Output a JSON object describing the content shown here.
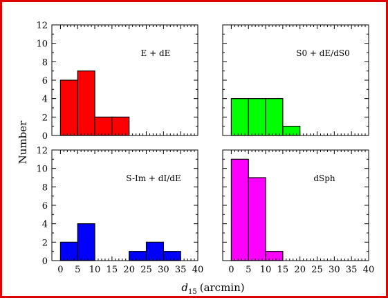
{
  "colors": {
    "frame": "#e00000"
  },
  "ylabel": "Number",
  "xlabel_main": "d",
  "xlabel_sub": "15",
  "xlabel_unit": "(arcmin)",
  "chart_data": [
    {
      "type": "bar",
      "panel": "top-left",
      "label": "E + dE",
      "color": "#ff0000",
      "bin_edges": [
        0,
        5,
        10,
        15,
        20
      ],
      "values": [
        6,
        7,
        2,
        2
      ],
      "xlim": [
        -2.5,
        40
      ],
      "ylim": [
        0,
        12
      ],
      "xticks": [
        0,
        5,
        10,
        15,
        20,
        25,
        30,
        35,
        40
      ],
      "yticks": [
        0,
        2,
        4,
        6,
        8,
        10,
        12
      ]
    },
    {
      "type": "bar",
      "panel": "top-right",
      "label": "S0 + dE/dS0",
      "color": "#00ff00",
      "bin_edges": [
        0,
        5,
        10,
        15,
        20
      ],
      "values": [
        4,
        4,
        4,
        1
      ],
      "xlim": [
        -2.5,
        40
      ],
      "ylim": [
        0,
        12
      ],
      "xticks": [
        0,
        5,
        10,
        15,
        20,
        25,
        30,
        35,
        40
      ],
      "yticks": [
        0,
        2,
        4,
        6,
        8,
        10,
        12
      ]
    },
    {
      "type": "bar",
      "panel": "bottom-left",
      "label": "S-Im + dI/dE",
      "color": "#0000ff",
      "bin_edges": [
        0,
        5,
        10,
        15,
        20,
        25,
        30,
        35
      ],
      "values": [
        2,
        4,
        0,
        0,
        1,
        2,
        1
      ],
      "xlim": [
        -2.5,
        40
      ],
      "ylim": [
        0,
        12
      ],
      "xticks": [
        0,
        5,
        10,
        15,
        20,
        25,
        30,
        35,
        40
      ],
      "yticks": [
        0,
        2,
        4,
        6,
        8,
        10,
        12
      ]
    },
    {
      "type": "bar",
      "panel": "bottom-right",
      "label": "dSph",
      "color": "#ff00ff",
      "bin_edges": [
        0,
        5,
        10,
        15
      ],
      "values": [
        11,
        9,
        1
      ],
      "xlim": [
        -2.5,
        40
      ],
      "ylim": [
        0,
        12
      ],
      "xticks": [
        0,
        5,
        10,
        15,
        20,
        25,
        30,
        35,
        40
      ],
      "yticks": [
        0,
        2,
        4,
        6,
        8,
        10,
        12
      ]
    }
  ]
}
